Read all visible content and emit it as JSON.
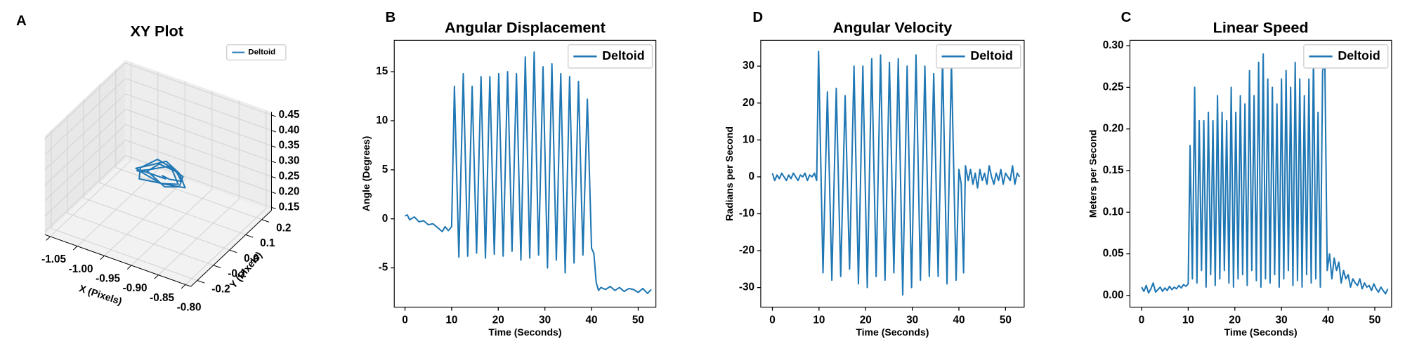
{
  "chart_data": [
    {
      "type": "line3d",
      "panel_label": "A",
      "title": "XY Plot",
      "xlabel": "X (Pixels)",
      "ylabel": "Y (Pixels)",
      "legend": "upper right",
      "xlim": [
        -1.06,
        -0.79
      ],
      "ylim": [
        -0.24,
        0.26
      ],
      "zlim": [
        0.14,
        0.46
      ],
      "xticks": [
        -1.05,
        {
          "value": -1.0,
          "label": "-1.00"
        },
        -0.95,
        {
          "value": -0.9,
          "label": "-0.90"
        },
        -0.85,
        {
          "value": -0.8,
          "label": "-0.80"
        }
      ],
      "yticks": [
        -0.2,
        -0.1,
        {
          "value": 0,
          "label": "0.0"
        },
        0.1,
        0.2
      ],
      "zticks": [
        0.15,
        {
          "value": 0.2,
          "label": "0.20"
        },
        0.25,
        {
          "value": 0.3,
          "label": "0.30"
        },
        0.35,
        {
          "value": 0.4,
          "label": "0.40"
        },
        0.45
      ],
      "series": [
        {
          "name": "Deltoid",
          "color": "#1f77b4",
          "x": [
            -0.93,
            -0.91,
            -0.9,
            -0.92,
            -0.95,
            -0.97,
            -0.96,
            -0.93,
            -0.9,
            -0.89,
            -0.91,
            -0.94,
            -0.97,
            -0.975,
            -0.95,
            -0.92,
            -0.9,
            -0.92,
            -0.95,
            -0.96,
            -0.94,
            -0.91,
            -0.895,
            -0.9,
            -0.93,
            -0.96,
            -0.97,
            -0.95,
            -0.92,
            -0.93
          ],
          "y": [
            0.05,
            0.03,
            0.07,
            0.1,
            0.09,
            0.05,
            0.01,
            -0.01,
            0.02,
            0.06,
            0.09,
            0.11,
            0.08,
            0.04,
            0,
            0.01,
            0.05,
            0.08,
            0.1,
            0.06,
            0.02,
            0,
            0.04,
            0.08,
            0.09,
            0.07,
            0.03,
            0.01,
            0.04,
            0.05
          ],
          "z": [
            0.27,
            0.28,
            0.26,
            0.27,
            0.29,
            0.27,
            0.26,
            0.28,
            0.27,
            0.25,
            0.27,
            0.28,
            0.26,
            0.27,
            0.29,
            0.27,
            0.26,
            0.28,
            0.27,
            0.26,
            0.28,
            0.27,
            0.26,
            0.27,
            0.28,
            0.26,
            0.27,
            0.29,
            0.27,
            0.27
          ]
        }
      ]
    },
    {
      "type": "line",
      "panel_label": "B",
      "title": "Angular Displacement",
      "xlabel": "Time (Seconds)",
      "ylabel": "Angle (Degrees)",
      "legend": "upper right",
      "grid": false,
      "xlim": [
        -2.3,
        53.8
      ],
      "ylim": [
        -9.0,
        18.2
      ],
      "xticks": [
        0,
        10,
        20,
        30,
        40,
        50
      ],
      "yticks": [
        -5,
        0,
        5,
        10,
        15
      ],
      "x": [
        0,
        0.5,
        1,
        2,
        3,
        4,
        5,
        6,
        7,
        8,
        8.6,
        9.3,
        10,
        10.6,
        11.55,
        12.5,
        13.45,
        14.4,
        15.35,
        16.3,
        17.25,
        18.2,
        19.15,
        20.1,
        21.05,
        22.0,
        22.95,
        23.9,
        24.85,
        25.8,
        26.75,
        27.7,
        28.65,
        29.6,
        30.55,
        31.5,
        32.45,
        33.4,
        34.35,
        35.3,
        36.25,
        37.2,
        38.15,
        39.1,
        40.0,
        40.5,
        41,
        41.5,
        42,
        43,
        44,
        45,
        46,
        47,
        48,
        49,
        50,
        51,
        52,
        52.8
      ],
      "series": [
        {
          "name": "Deltoid",
          "color": "#1f77b4",
          "values": [
            0.3,
            0.4,
            -0.1,
            0.2,
            -0.3,
            -0.2,
            -0.6,
            -0.5,
            -0.9,
            -1.3,
            -0.8,
            -1.2,
            -0.8,
            13.5,
            -3.9,
            14.8,
            -3.8,
            13.5,
            -3.5,
            14.5,
            -4.0,
            14.5,
            -3.6,
            14.8,
            -3.8,
            15.0,
            -3.3,
            14.8,
            -4.2,
            16.5,
            -4.0,
            17.0,
            -3.7,
            15.5,
            -5.0,
            15.8,
            -4.2,
            14.8,
            -5.5,
            14.5,
            -4.5,
            14.0,
            -3.7,
            12.2,
            -3.0,
            -3.5,
            -6.5,
            -7.3,
            -7.0,
            -7.2,
            -6.9,
            -7.3,
            -7.0,
            -7.4,
            -7.1,
            -7.2,
            -7.5,
            -7.1,
            -7.6,
            -7.2
          ]
        }
      ]
    },
    {
      "type": "line",
      "panel_label": "D",
      "title": "Angular Velocity",
      "xlabel": "Time (Seconds)",
      "ylabel": "Radians per Second",
      "legend": "upper right",
      "grid": false,
      "xlim": [
        -2.5,
        54.0
      ],
      "ylim": [
        -35.3,
        37.0
      ],
      "xticks": [
        0,
        10,
        20,
        30,
        40,
        50
      ],
      "yticks": [
        -30,
        -20,
        -10,
        0,
        10,
        20,
        30
      ],
      "x": [
        0,
        0.5,
        1,
        1.5,
        2,
        2.5,
        3,
        3.5,
        4,
        4.5,
        5,
        5.5,
        6,
        6.5,
        7,
        7.5,
        8,
        8.5,
        9,
        9.5,
        9.9,
        10.85,
        11.8,
        12.75,
        13.7,
        14.65,
        15.6,
        16.55,
        17.5,
        18.45,
        19.4,
        20.35,
        21.3,
        22.25,
        23.2,
        24.15,
        25.1,
        26.05,
        27.0,
        27.95,
        28.9,
        29.85,
        30.8,
        31.75,
        32.7,
        33.65,
        34.6,
        35.55,
        36.5,
        37.45,
        38.4,
        39.4,
        40,
        40.5,
        41,
        41.4,
        42,
        42.5,
        43,
        43.5,
        44,
        44.5,
        45,
        45.5,
        46,
        46.5,
        47,
        47.5,
        48,
        48.5,
        49,
        49.5,
        50,
        50.5,
        51,
        51.5,
        52,
        52.5,
        53
      ],
      "series": [
        {
          "name": "Deltoid",
          "color": "#1f77b4",
          "values": [
            1,
            -1,
            0.5,
            -0.5,
            1,
            0,
            -1,
            0.5,
            -0.5,
            1,
            0,
            -1,
            0.5,
            0,
            1,
            -1,
            0.5,
            0,
            1,
            -1,
            34,
            -26,
            23,
            -28,
            24,
            -27,
            22,
            -25,
            30,
            -29,
            30,
            -30,
            32,
            -27,
            33,
            -28,
            31,
            -26,
            32,
            -32,
            30,
            -30,
            33,
            -28,
            30,
            -27,
            28,
            -27,
            32,
            -29,
            31,
            -28,
            2,
            -2,
            -26,
            3,
            -1,
            2,
            -2,
            1,
            -3,
            2,
            -1,
            1,
            -2,
            3,
            0,
            -2,
            1,
            -1,
            2,
            -2,
            1,
            0,
            -1,
            3,
            -2,
            1,
            0
          ]
        }
      ]
    },
    {
      "type": "line",
      "panel_label": "C",
      "title": "Linear Speed",
      "xlabel": "Time (Seconds)",
      "ylabel": "Meters per Second",
      "legend": "upper right",
      "grid": false,
      "xlim": [
        -2.5,
        53.6
      ],
      "ylim": [
        -0.014,
        0.3065
      ],
      "xticks": [
        0,
        10,
        20,
        30,
        40,
        50
      ],
      "yticks": [
        {
          "value": 0,
          "label": "0.00"
        },
        0.05,
        {
          "value": 0.1,
          "label": "0.10"
        },
        0.15,
        {
          "value": 0.2,
          "label": "0.20"
        },
        0.25,
        {
          "value": 0.3,
          "label": "0.30"
        }
      ],
      "x": [
        0,
        0.5,
        1,
        1.5,
        2,
        2.5,
        3,
        3.5,
        4,
        4.5,
        5,
        5.5,
        6,
        6.5,
        7,
        7.5,
        8,
        8.5,
        9,
        9.5,
        10,
        10.4,
        10.89,
        11.38,
        11.87,
        12.36,
        12.85,
        13.34,
        13.83,
        14.32,
        14.81,
        15.3,
        15.79,
        16.28,
        16.77,
        17.26,
        17.75,
        18.24,
        18.73,
        19.22,
        19.71,
        20.2,
        20.69,
        21.18,
        21.67,
        22.16,
        22.65,
        23.14,
        23.63,
        24.12,
        24.61,
        25.1,
        25.59,
        26.08,
        26.57,
        27.06,
        27.55,
        28.04,
        28.53,
        29.02,
        29.51,
        30.0,
        30.49,
        30.98,
        31.47,
        31.96,
        32.45,
        32.94,
        33.43,
        33.92,
        34.41,
        34.9,
        35.39,
        35.88,
        36.37,
        36.86,
        37.35,
        37.84,
        38.33,
        38.82,
        39.3,
        39.8,
        40.3,
        40.8,
        41.3,
        41.8,
        42.3,
        42.8,
        43.3,
        43.8,
        44.3,
        44.8,
        45.3,
        45.8,
        46.3,
        46.8,
        47.3,
        47.8,
        48.3,
        48.8,
        49.3,
        49.8,
        50.3,
        50.8,
        51.3,
        51.8,
        52.3,
        52.8
      ],
      "series": [
        {
          "name": "Deltoid",
          "color": "#1f77b4",
          "values": [
            0.01,
            0.005,
            0.012,
            0.003,
            0.008,
            0.015,
            0.004,
            0.007,
            0.01,
            0.005,
            0.009,
            0.006,
            0.011,
            0.007,
            0.01,
            0.008,
            0.012,
            0.009,
            0.013,
            0.011,
            0.014,
            0.18,
            0.02,
            0.25,
            0.015,
            0.21,
            0.03,
            0.21,
            0.01,
            0.22,
            0.025,
            0.21,
            0.012,
            0.24,
            0.02,
            0.22,
            0.03,
            0.21,
            0.015,
            0.25,
            0.01,
            0.22,
            0.02,
            0.24,
            0.025,
            0.23,
            0.012,
            0.27,
            0.03,
            0.24,
            0.018,
            0.28,
            0.01,
            0.29,
            0.02,
            0.26,
            0.015,
            0.25,
            0.025,
            0.23,
            0.01,
            0.26,
            0.02,
            0.27,
            0.03,
            0.25,
            0.012,
            0.28,
            0.018,
            0.26,
            0.01,
            0.24,
            0.025,
            0.26,
            0.015,
            0.29,
            0.02,
            0.22,
            0.01,
            0.27,
            0.28,
            0.03,
            0.05,
            0.02,
            0.045,
            0.03,
            0.04,
            0.015,
            0.03,
            0.02,
            0.025,
            0.01,
            0.02,
            0.015,
            0.012,
            0.02,
            0.008,
            0.015,
            0.01,
            0.012,
            0.006,
            0.014,
            0.008,
            0.004,
            0.01,
            0.006,
            0.002,
            0.008
          ]
        }
      ]
    }
  ]
}
